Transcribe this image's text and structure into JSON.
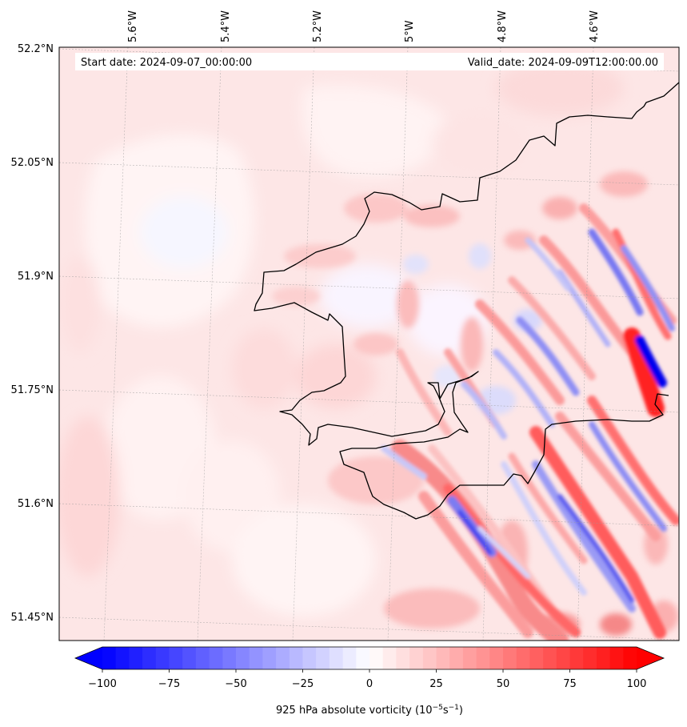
{
  "header": {
    "start_label": "Start date: 2024-09-07_00:00:00",
    "valid_label": "Valid_date: 2024-09-09T12:00:00.00"
  },
  "map": {
    "lon_labels": [
      "5.6°W",
      "5.4°W",
      "5.2°W",
      "5°W",
      "4.8°W",
      "4.6°W"
    ],
    "lat_labels": [
      "52.2°N",
      "52.05°N",
      "51.9°N",
      "51.75°N",
      "51.6°N",
      "51.45°N"
    ],
    "gridlines": true,
    "coastline_color": "#000000"
  },
  "colorbar": {
    "label_main": "925 hPa absolute vorticity (10",
    "label_sup1": "−5",
    "label_mid": "s",
    "label_sup2": "−1",
    "label_end": ")",
    "ticks": [
      "−100",
      "−75",
      "−50",
      "−25",
      "0",
      "25",
      "50",
      "75",
      "100"
    ],
    "min": -100,
    "max": 100,
    "step": 5,
    "colors": {
      "low": "#0000ff",
      "mid": "#ffffff",
      "high": "#ff0000"
    },
    "extend": "both"
  },
  "chart_data": {
    "type": "heatmap",
    "title": "",
    "xlabel": "",
    "ylabel": "",
    "variable": "925 hPa absolute vorticity",
    "units": "10^-5 s^-1",
    "colormap": "bwr",
    "vmin": -100,
    "vmax": 100,
    "lon_ticks": [
      -5.6,
      -5.4,
      -5.2,
      -5.0,
      -4.8,
      -4.6
    ],
    "lat_ticks": [
      52.2,
      52.05,
      51.9,
      51.75,
      51.6,
      51.45
    ],
    "pattern": "weak positive vorticity (0 to 15) over the open sea in the west; alternating NW–SE oriented bands of strong positive (up to ~100) and negative (down to ~-100) vorticity over land in the east and south-east"
  }
}
